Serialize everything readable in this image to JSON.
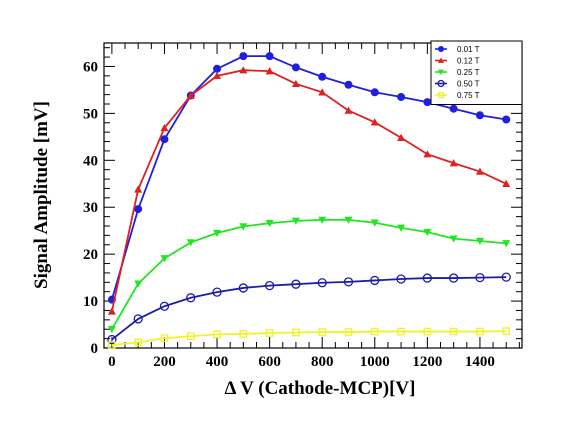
{
  "chart_data": {
    "type": "line",
    "xlabel": "Δ V (Cathode-MCP)[V]",
    "ylabel": "Signal Amplitude [mV]",
    "xlim": [
      -30,
      1560
    ],
    "ylim": [
      0,
      65
    ],
    "x_ticks": [
      0,
      200,
      400,
      600,
      800,
      1000,
      1200,
      1400
    ],
    "y_ticks": [
      0,
      10,
      20,
      30,
      40,
      50,
      60
    ],
    "x": [
      0,
      100,
      200,
      300,
      400,
      500,
      600,
      700,
      800,
      900,
      1000,
      1100,
      1200,
      1300,
      1400,
      1500
    ],
    "legend_position": "top-right",
    "series": [
      {
        "name": "0.01 T",
        "color": "#1f1fe0",
        "marker": "filled-circle",
        "values": [
          10.3,
          29.6,
          44.5,
          53.8,
          59.5,
          62.2,
          62.2,
          59.8,
          57.8,
          56.1,
          54.5,
          53.5,
          52.4,
          51.0,
          49.6,
          48.7
        ]
      },
      {
        "name": "0.12 T",
        "color": "#e01f1f",
        "marker": "filled-triangle-up",
        "values": [
          7.8,
          33.8,
          46.9,
          53.8,
          58.0,
          59.2,
          59.0,
          56.3,
          54.5,
          50.6,
          48.1,
          44.8,
          41.3,
          39.4,
          37.6,
          35.0
        ]
      },
      {
        "name": "0.25 T",
        "color": "#22e622",
        "marker": "filled-triangle-down",
        "values": [
          4.0,
          13.7,
          19.1,
          22.5,
          24.5,
          25.9,
          26.6,
          27.1,
          27.3,
          27.3,
          26.7,
          25.6,
          24.7,
          23.3,
          22.8,
          22.3
        ]
      },
      {
        "name": "0.50 T",
        "color": "#1c1ca8",
        "marker": "open-circle",
        "values": [
          1.8,
          6.2,
          8.9,
          10.7,
          11.9,
          12.8,
          13.3,
          13.6,
          13.9,
          14.1,
          14.4,
          14.7,
          14.9,
          14.9,
          15.0,
          15.1
        ]
      },
      {
        "name": "0.75 T",
        "color": "#f2f22a",
        "marker": "open-square",
        "values": [
          0.6,
          1.2,
          2.1,
          2.5,
          2.9,
          3.0,
          3.2,
          3.3,
          3.4,
          3.4,
          3.5,
          3.5,
          3.5,
          3.5,
          3.5,
          3.6
        ]
      }
    ]
  }
}
